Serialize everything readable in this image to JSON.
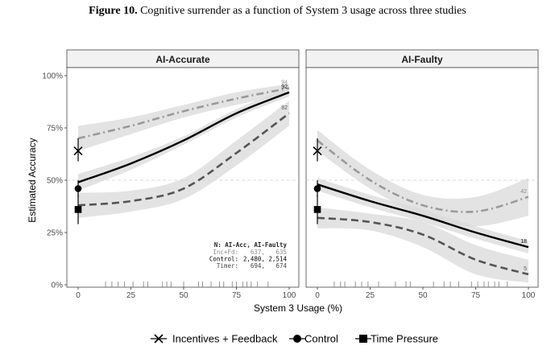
{
  "figure": {
    "title_bold": "Figure 10.",
    "title_rest": " Cognitive surrender as a function of System 3 usage across three studies"
  },
  "chart_data": {
    "type": "line",
    "xlabel": "System 3 Usage (%)",
    "ylabel": "Estimated Accuracy",
    "xlim": [
      0,
      100
    ],
    "ylim": [
      0,
      1
    ],
    "x_ticks": [
      0,
      25,
      50,
      75,
      100
    ],
    "x_tick_labels": [
      "0",
      "25",
      "50",
      "75",
      "100"
    ],
    "y_ticks": [
      0,
      0.25,
      0.5,
      0.75,
      1.0
    ],
    "y_tick_labels": [
      "0%",
      "25%",
      "50%",
      "75%",
      "100%"
    ],
    "reference_line_y": 0.5,
    "colors": {
      "incentives": "#9a9a9a",
      "control": "#000000",
      "timer": "#555555",
      "ribbon": "#d9d9d9",
      "panel_border": "#444444",
      "strip_bg": "#f2f2f2"
    },
    "legend": {
      "placement": "bottom",
      "entries": [
        {
          "key": "incentives",
          "label": "Incentives + Feedback",
          "marker": "x"
        },
        {
          "key": "control",
          "label": "Control",
          "marker": "circle"
        },
        {
          "key": "timer",
          "label": "Time Pressure",
          "marker": "square"
        }
      ]
    },
    "panels": [
      {
        "name": "AI-Accurate",
        "series": [
          {
            "key": "incentives",
            "name": "Incentives + Feedback",
            "dash": "dashdot",
            "x": [
              0,
              25,
              50,
              75,
              100
            ],
            "y": [
              0.7,
              0.76,
              0.83,
              0.89,
              0.94
            ],
            "lower": [
              0.64,
              0.72,
              0.8,
              0.86,
              0.91
            ],
            "upper": [
              0.76,
              0.8,
              0.86,
              0.92,
              0.96
            ],
            "end_label": "94",
            "intercept": {
              "y": 0.64,
              "lo": 0.59,
              "hi": 0.7
            }
          },
          {
            "key": "control",
            "name": "Control",
            "dash": "solid",
            "x": [
              0,
              25,
              50,
              75,
              100
            ],
            "y": [
              0.49,
              0.58,
              0.69,
              0.82,
              0.92
            ],
            "lower": [
              0.45,
              0.55,
              0.67,
              0.8,
              0.9
            ],
            "upper": [
              0.53,
              0.61,
              0.71,
              0.84,
              0.94
            ],
            "end_label": "92",
            "intercept": {
              "y": 0.46,
              "lo": 0.42,
              "hi": 0.5
            }
          },
          {
            "key": "timer",
            "name": "Time Pressure",
            "dash": "dashed",
            "x": [
              0,
              25,
              50,
              75,
              100
            ],
            "y": [
              0.38,
              0.4,
              0.46,
              0.63,
              0.82
            ],
            "lower": [
              0.32,
              0.35,
              0.41,
              0.57,
              0.76
            ],
            "upper": [
              0.44,
              0.45,
              0.51,
              0.69,
              0.88
            ],
            "end_label": "82",
            "intercept": {
              "y": 0.36,
              "lo": 0.29,
              "hi": 0.43
            }
          }
        ],
        "rug": [
          13,
          16,
          19,
          22,
          26,
          31,
          33,
          40,
          42,
          44,
          50,
          57,
          59,
          63,
          67,
          69,
          73,
          75,
          78,
          80,
          82,
          85,
          90
        ],
        "n_table": {
          "header": "N: AI-Acc, AI-Faulty",
          "rows": [
            {
              "label": "Inc+Fd:",
              "values": "637,   635"
            },
            {
              "label": "Control:",
              "values": "2,480, 2,514"
            },
            {
              "label": "Timer:",
              "values": "694,   674"
            }
          ]
        }
      },
      {
        "name": "AI-Faulty",
        "series": [
          {
            "key": "incentives",
            "name": "Incentives + Feedback",
            "dash": "dashdot",
            "x": [
              0,
              25,
              50,
              75,
              100
            ],
            "y": [
              0.69,
              0.5,
              0.38,
              0.35,
              0.42
            ],
            "lower": [
              0.64,
              0.46,
              0.33,
              0.28,
              0.33
            ],
            "upper": [
              0.74,
              0.55,
              0.43,
              0.42,
              0.51
            ],
            "end_label": "42",
            "intercept": {
              "y": 0.64,
              "lo": 0.59,
              "hi": 0.7
            }
          },
          {
            "key": "control",
            "name": "Control",
            "dash": "solid",
            "x": [
              0,
              25,
              50,
              75,
              100
            ],
            "y": [
              0.48,
              0.4,
              0.33,
              0.25,
              0.18
            ],
            "lower": [
              0.45,
              0.37,
              0.3,
              0.22,
              0.15
            ],
            "upper": [
              0.51,
              0.43,
              0.36,
              0.28,
              0.21
            ],
            "end_label": "18",
            "intercept": {
              "y": 0.46,
              "lo": 0.42,
              "hi": 0.5
            }
          },
          {
            "key": "timer",
            "name": "Time Pressure",
            "dash": "dashed",
            "x": [
              0,
              25,
              50,
              75,
              100
            ],
            "y": [
              0.32,
              0.3,
              0.24,
              0.12,
              0.05
            ],
            "lower": [
              0.27,
              0.26,
              0.18,
              0.05,
              0.01
            ],
            "upper": [
              0.37,
              0.34,
              0.3,
              0.19,
              0.12
            ],
            "end_label": "5",
            "intercept": {
              "y": 0.36,
              "lo": 0.29,
              "hi": 0.43
            }
          }
        ],
        "rug": [
          8,
          11,
          13,
          18,
          21,
          24,
          29,
          37,
          42,
          44,
          55,
          60,
          63,
          67,
          73,
          76,
          79,
          81,
          84,
          86,
          90
        ]
      }
    ]
  }
}
